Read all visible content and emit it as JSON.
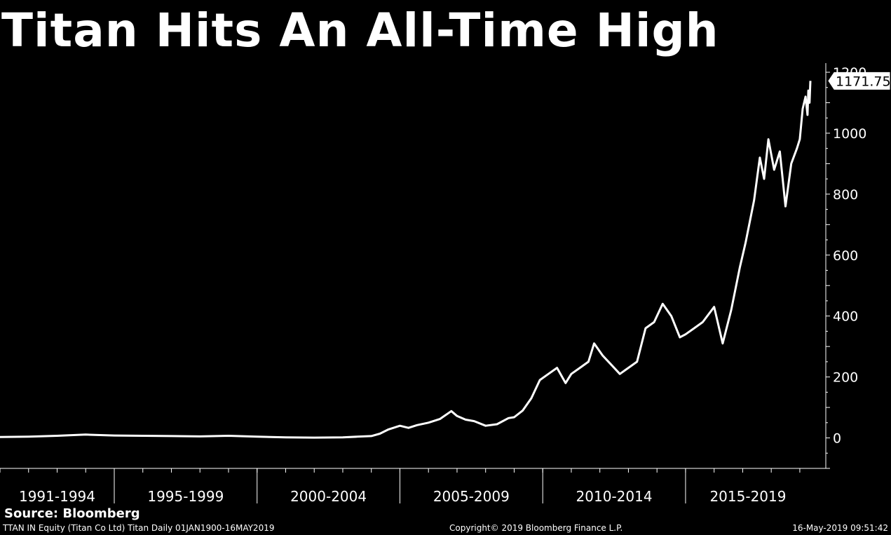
{
  "chart_data": {
    "type": "line",
    "title": "Titan Hits An All-Time High",
    "xlabel": "",
    "ylabel": "",
    "ylim": [
      -100,
      1230
    ],
    "xlim": [
      1991.0,
      2019.37
    ],
    "yticks": [
      0,
      200,
      400,
      600,
      800,
      1000,
      1200
    ],
    "period_labels": [
      {
        "label": "1991-1994",
        "start": 1991,
        "end": 1995
      },
      {
        "label": "1995-1999",
        "start": 1995,
        "end": 2000
      },
      {
        "label": "2000-2004",
        "start": 2000,
        "end": 2005
      },
      {
        "label": "2005-2009",
        "start": 2005,
        "end": 2010
      },
      {
        "label": "2010-2014",
        "start": 2010,
        "end": 2015
      },
      {
        "label": "2015-2019",
        "start": 2015,
        "end": 2019.37
      }
    ],
    "last_value_label": "1171.75",
    "last_value": 1171.75,
    "grid": false,
    "series": [
      {
        "name": "",
        "color": "#ffffff",
        "x": [
          1991.0,
          1992.0,
          1993.0,
          1994.0,
          1995.0,
          1996.0,
          1997.0,
          1998.0,
          1999.0,
          2000.0,
          2001.0,
          2002.0,
          2003.0,
          2003.5,
          2004.0,
          2004.3,
          2004.6,
          2005.0,
          2005.3,
          2005.6,
          2006.0,
          2006.4,
          2006.8,
          2007.0,
          2007.3,
          2007.6,
          2008.0,
          2008.4,
          2008.8,
          2009.0,
          2009.3,
          2009.6,
          2009.9,
          2010.2,
          2010.5,
          2010.8,
          2011.0,
          2011.3,
          2011.6,
          2011.8,
          2012.1,
          2012.4,
          2012.7,
          2013.0,
          2013.3,
          2013.6,
          2013.9,
          2014.2,
          2014.5,
          2014.8,
          2015.0,
          2015.3,
          2015.6,
          2016.0,
          2016.3,
          2016.6,
          2016.9,
          2017.1,
          2017.4,
          2017.6,
          2017.75,
          2017.9,
          2018.1,
          2018.3,
          2018.5,
          2018.7,
          2018.9,
          2019.0,
          2019.1,
          2019.2,
          2019.27,
          2019.3,
          2019.34,
          2019.37
        ],
        "values": [
          3,
          4,
          7,
          11,
          8,
          7,
          6,
          5,
          7,
          4,
          2,
          1,
          2,
          4,
          6,
          14,
          28,
          40,
          33,
          42,
          50,
          62,
          88,
          72,
          60,
          55,
          40,
          45,
          65,
          68,
          90,
          130,
          190,
          210,
          230,
          180,
          210,
          230,
          250,
          310,
          270,
          240,
          210,
          230,
          250,
          360,
          380,
          440,
          400,
          330,
          340,
          360,
          380,
          430,
          310,
          420,
          560,
          640,
          780,
          920,
          850,
          980,
          880,
          940,
          760,
          900,
          950,
          980,
          1080,
          1120,
          1060,
          1140,
          1100,
          1171.75
        ]
      }
    ]
  },
  "source_label": "Source: Bloomberg",
  "footer": {
    "left": "TTAN IN Equity (Titan Co Ltd) Titan  Daily 01JAN1900-16MAY2019",
    "center": "Copyright© 2019 Bloomberg Finance L.P.",
    "right": "16-May-2019 09:51:42"
  }
}
